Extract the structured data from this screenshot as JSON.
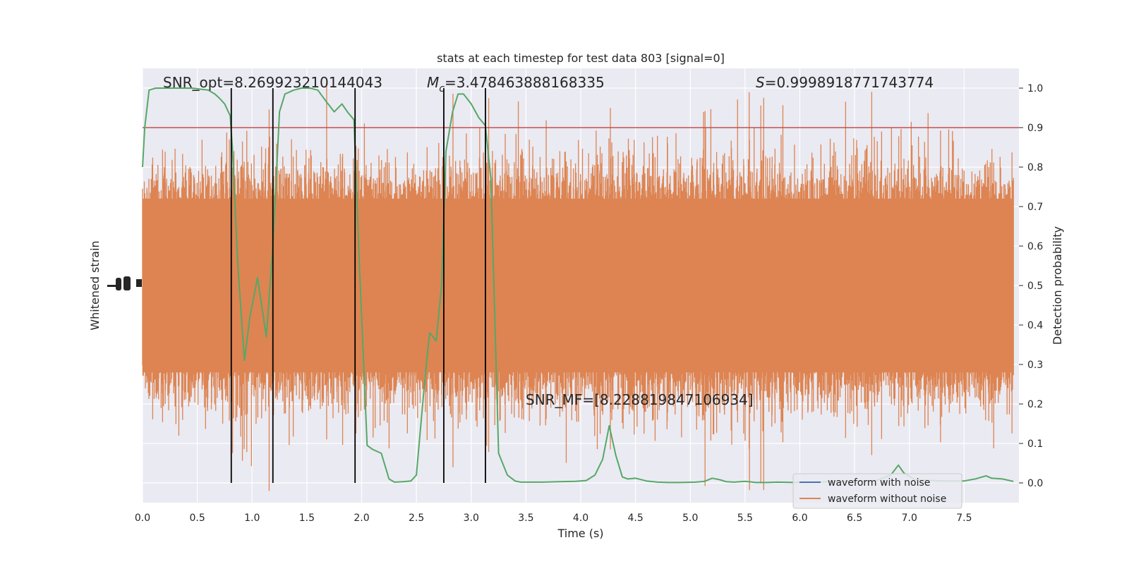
{
  "chart_data": {
    "type": "line",
    "title": "stats at each timestep for test data 803 [signal=0]",
    "xlabel": "Time (s)",
    "ylabel_left": "Whitened strain",
    "ylabel_right": "Detection probability",
    "xlim": [
      0.0,
      8.0
    ],
    "ylim_right": [
      -0.05,
      1.05
    ],
    "x_ticks": [
      "0.0",
      "0.5",
      "1.0",
      "1.5",
      "2.0",
      "2.5",
      "3.0",
      "3.5",
      "4.0",
      "4.5",
      "5.0",
      "5.5",
      "6.0",
      "6.5",
      "7.0",
      "7.5"
    ],
    "x_tick_values": [
      0.0,
      0.5,
      1.0,
      1.5,
      2.0,
      2.5,
      3.0,
      3.5,
      4.0,
      4.5,
      5.0,
      5.5,
      6.0,
      6.5,
      7.0,
      7.5
    ],
    "y_right_ticks": [
      "0.0",
      "0.1",
      "0.2",
      "0.3",
      "0.4",
      "0.5",
      "0.6",
      "0.7",
      "0.8",
      "0.9",
      "1.0"
    ],
    "y_right_tick_values": [
      0.0,
      0.1,
      0.2,
      0.3,
      0.4,
      0.5,
      0.6,
      0.7,
      0.8,
      0.9,
      1.0
    ],
    "grid": true,
    "legend_placement": "lower-right",
    "annotations": {
      "snr_opt": "SNR_opt=8.269923210144043",
      "mc_symbol": "M",
      "mc_subscript": "c",
      "mc_value": "=3.478463888168335",
      "s_symbol": "S",
      "s_value": "=0.9998918771743774",
      "snr_mf": "SNR_MF=[8.228819847106934]"
    },
    "threshold": {
      "value": 0.9,
      "color": "#c44e52"
    },
    "vertical_lines_x": [
      0.81,
      1.19,
      1.94,
      2.75,
      3.13
    ],
    "series": [
      {
        "name": "waveform with noise",
        "color": "#4c72b0"
      },
      {
        "name": "waveform without noise",
        "color": "#dd8452"
      }
    ],
    "strain_band": {
      "color": "#dd8452",
      "center": 0.5,
      "typical_half_width": 0.3,
      "peak_half_width": 0.45
    },
    "probability": {
      "color": "#55a868",
      "x": [
        0.0,
        0.02,
        0.06,
        0.12,
        0.2,
        0.3,
        0.45,
        0.6,
        0.66,
        0.7,
        0.75,
        0.8,
        0.82,
        0.87,
        0.93,
        0.98,
        1.05,
        1.13,
        1.19,
        1.25,
        1.3,
        1.38,
        1.45,
        1.53,
        1.6,
        1.68,
        1.75,
        1.82,
        1.87,
        1.93,
        1.98,
        2.05,
        2.1,
        2.18,
        2.25,
        2.3,
        2.38,
        2.45,
        2.5,
        2.58,
        2.62,
        2.68,
        2.73,
        2.77,
        2.83,
        2.88,
        2.93,
        3.0,
        3.07,
        3.13,
        3.18,
        3.25,
        3.33,
        3.4,
        3.45,
        3.55,
        3.65,
        3.8,
        3.95,
        4.05,
        4.13,
        4.2,
        4.26,
        4.32,
        4.38,
        4.43,
        4.5,
        4.6,
        4.7,
        4.8,
        4.9,
        5.05,
        5.13,
        5.2,
        5.27,
        5.33,
        5.4,
        5.5,
        5.6,
        5.7,
        5.8,
        5.95,
        6.1,
        6.3,
        6.5,
        6.7,
        6.83,
        6.9,
        6.95,
        7.05,
        7.3,
        7.5,
        7.6,
        7.7,
        7.75,
        7.85,
        7.95
      ],
      "y": [
        0.8,
        0.9,
        0.995,
        1.0,
        1.0,
        1.0,
        1.0,
        0.995,
        0.985,
        0.975,
        0.96,
        0.93,
        0.85,
        0.55,
        0.31,
        0.42,
        0.52,
        0.37,
        0.6,
        0.94,
        0.985,
        0.995,
        1.0,
        1.0,
        0.995,
        0.965,
        0.94,
        0.96,
        0.94,
        0.92,
        0.55,
        0.095,
        0.085,
        0.075,
        0.01,
        0.002,
        0.003,
        0.005,
        0.02,
        0.27,
        0.38,
        0.36,
        0.5,
        0.84,
        0.94,
        0.985,
        0.985,
        0.96,
        0.925,
        0.905,
        0.77,
        0.075,
        0.02,
        0.005,
        0.002,
        0.002,
        0.002,
        0.003,
        0.004,
        0.006,
        0.02,
        0.06,
        0.145,
        0.07,
        0.015,
        0.01,
        0.012,
        0.005,
        0.002,
        0.001,
        0.001,
        0.002,
        0.004,
        0.012,
        0.008,
        0.003,
        0.002,
        0.004,
        0.001,
        0.001,
        0.002,
        0.001,
        0.002,
        0.003,
        0.004,
        0.006,
        0.02,
        0.045,
        0.025,
        0.008,
        0.005,
        0.005,
        0.01,
        0.018,
        0.012,
        0.01,
        0.004
      ]
    }
  }
}
